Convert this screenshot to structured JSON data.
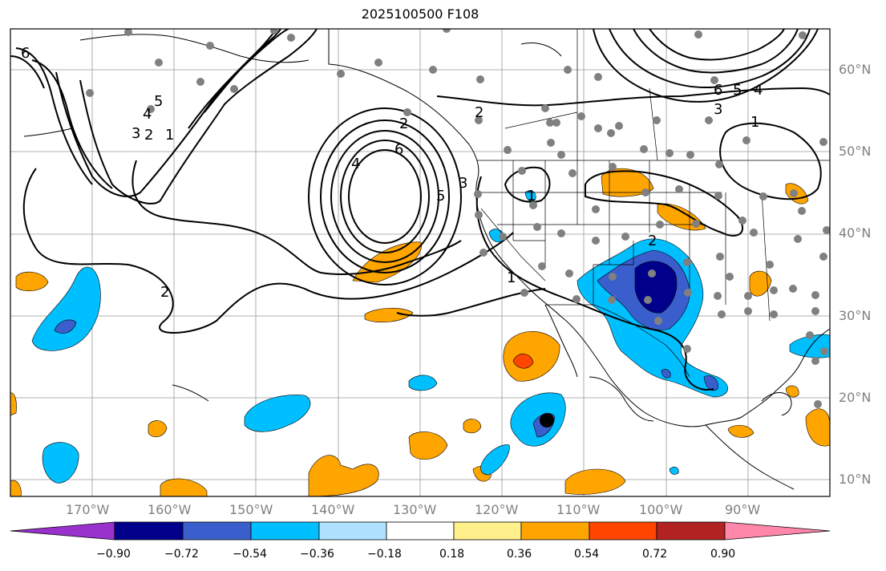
{
  "title": "2025100500 F108",
  "lat_labels": [
    "60°N",
    "50°N",
    "40°N",
    "30°N",
    "20°N",
    "10°N"
  ],
  "lon_labels": [
    "170°W",
    "160°W",
    "150°W",
    "140°W",
    "130°W",
    "120°W",
    "110°W",
    "100°W",
    "90°W"
  ],
  "colorbar": {
    "ticks": [
      "−0.90",
      "−0.72",
      "−0.54",
      "−0.36",
      "−0.18",
      "0.18",
      "0.36",
      "0.54",
      "0.72",
      "0.90"
    ],
    "colors": [
      "#9932cc",
      "#00008b",
      "#3a5fcd",
      "#00bfff",
      "#b0e2ff",
      "#ffffff",
      "#fff08c",
      "#ffa500",
      "#ff4500",
      "#b22222",
      "#ff88aa"
    ]
  },
  "contour_labels": [
    "6",
    "5",
    "4",
    "3",
    "2",
    "1",
    "2",
    "4",
    "6",
    "5",
    "3",
    "1",
    "2",
    "1",
    "6",
    "5",
    "4",
    "3",
    "1",
    "2",
    "2"
  ]
}
